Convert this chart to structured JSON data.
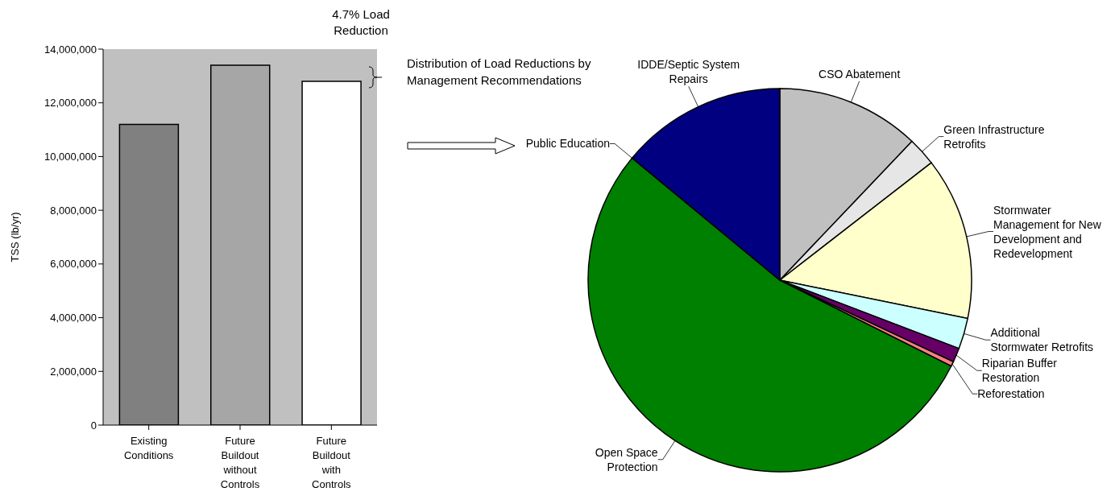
{
  "chart_data": [
    {
      "type": "bar",
      "ylabel": "TSS (lb/yr)",
      "categories": [
        "Existing Conditions",
        "Future Buildout without Controls",
        "Future Buildout with Controls"
      ],
      "values": [
        11200000,
        13400000,
        12800000
      ],
      "colors": [
        "#808080",
        "#a6a6a6",
        "#ffffff"
      ],
      "ylim": [
        0,
        14000000
      ],
      "yticks": [
        0,
        {
          "value": 2000000,
          "label": "2,000,000"
        },
        {
          "value": 4000000,
          "label": "4,000,000"
        },
        {
          "value": 6000000,
          "label": "6,000,000"
        },
        {
          "value": 8000000,
          "label": "8,000,000"
        },
        {
          "value": 10000000,
          "label": "10,000,000"
        },
        {
          "value": 12000000,
          "label": "12,000,000"
        },
        {
          "value": 14000000,
          "label": "14,000,000"
        }
      ],
      "annotations": [
        "4.7% Load Reduction"
      ]
    },
    {
      "type": "pie",
      "categories": [
        "CSO Abatement",
        "Green Infrastructure Retrofits",
        "Stormwater Management for New Development and Redevelopment",
        "Additional Stormwater Retrofits",
        "Riparian Buffer Restoration",
        "Reforestation",
        "Open Space Protection",
        "Public Education",
        "IDDE/Septic System Repairs"
      ],
      "values": [
        12.1,
        2.4,
        13.7,
        2.6,
        1.2,
        0.4,
        53.6,
        null,
        14
      ],
      "colors": [
        "#c0c0c0",
        "#e6e6e6",
        "#ffffcc",
        "#ccffff",
        "#660066",
        "#ff8080",
        "#008000",
        "#3366ff",
        "#000080"
      ],
      "annotations": [
        "Distribution of Load Reductions by Management Recommendations"
      ]
    }
  ]
}
